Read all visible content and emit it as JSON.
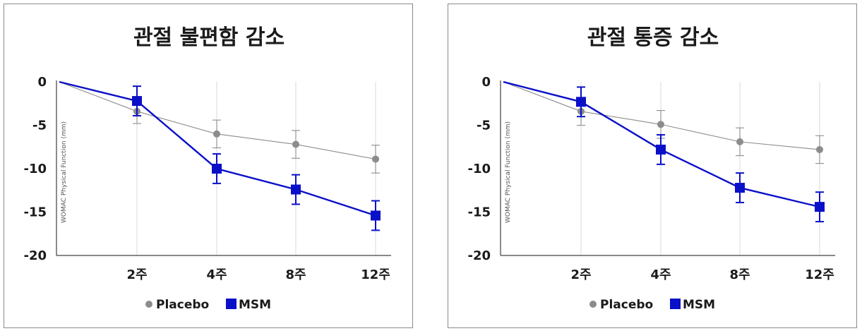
{
  "chart_data": [
    {
      "type": "line",
      "title": "관절 불편함 감소",
      "ylabel": "WOMAC Physical Function (mm)",
      "xlabel": "",
      "categories": [
        "2주",
        "4주",
        "8주",
        "12주"
      ],
      "x": [
        0,
        2,
        4,
        8,
        12
      ],
      "ylim": [
        -20,
        0
      ],
      "yticks": [
        0,
        -5,
        -10,
        -15,
        -20
      ],
      "grid": "vertical",
      "legend_position": "bottom",
      "series": [
        {
          "name": "Placebo",
          "color": "#8c8c8c",
          "marker": "circle",
          "values": [
            0,
            -3.4,
            -6.0,
            -7.2,
            -8.9
          ],
          "error": [
            0,
            1.4,
            1.6,
            1.6,
            1.6
          ]
        },
        {
          "name": "MSM",
          "color": "#0a10c8",
          "marker": "square",
          "values": [
            0,
            -2.2,
            -10.0,
            -12.4,
            -15.4
          ],
          "error": [
            0,
            1.7,
            1.7,
            1.7,
            1.7
          ]
        }
      ]
    },
    {
      "type": "line",
      "title": "관절 통증 감소",
      "ylabel": "WOMAC Physical Function (mm)",
      "xlabel": "",
      "categories": [
        "2주",
        "4주",
        "8주",
        "12주"
      ],
      "x": [
        0,
        2,
        4,
        8,
        12
      ],
      "ylim": [
        -20,
        0
      ],
      "yticks": [
        0,
        -5,
        -10,
        -15,
        -20
      ],
      "grid": "vertical",
      "legend_position": "bottom",
      "series": [
        {
          "name": "Placebo",
          "color": "#8c8c8c",
          "marker": "circle",
          "values": [
            0,
            -3.4,
            -4.9,
            -6.9,
            -7.8
          ],
          "error": [
            0,
            1.6,
            1.6,
            1.6,
            1.6
          ]
        },
        {
          "name": "MSM",
          "color": "#0a10c8",
          "marker": "square",
          "values": [
            0,
            -2.3,
            -7.8,
            -12.2,
            -14.4
          ],
          "error": [
            0,
            1.7,
            1.7,
            1.7,
            1.7
          ]
        }
      ]
    }
  ]
}
